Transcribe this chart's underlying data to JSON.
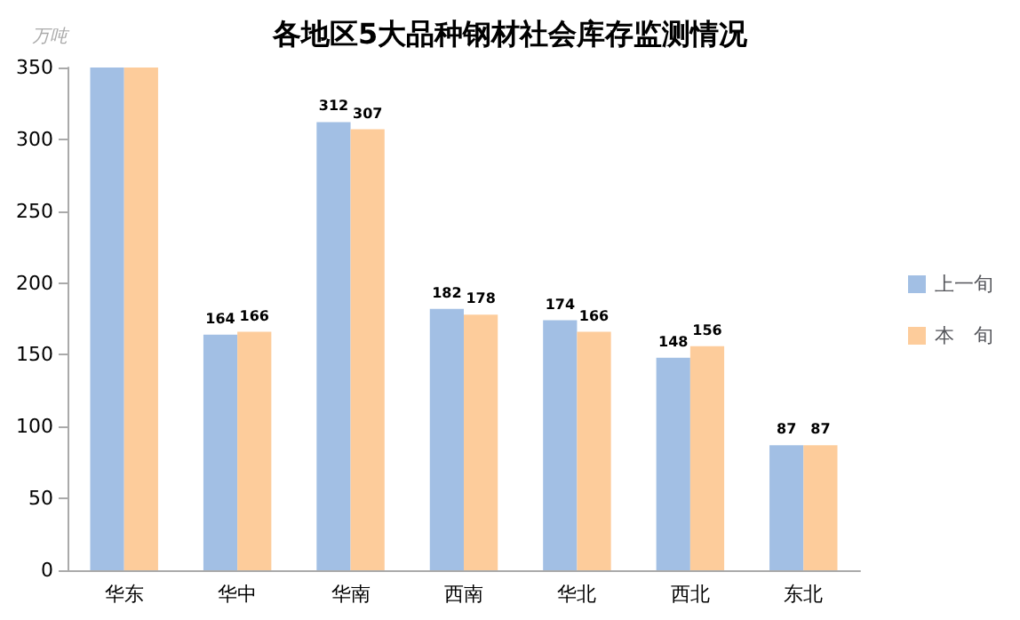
{
  "chart_data": {
    "type": "bar",
    "title": "各地区5大品种钢材社会库存监测情况",
    "ylabel": "万吨",
    "categories": [
      "华东",
      "华中",
      "华南",
      "西南",
      "华北",
      "西北",
      "东北"
    ],
    "series": [
      {
        "name": "上一旬",
        "color": "#a2bfe4",
        "values": [
          350,
          164,
          312,
          182,
          174,
          148,
          87
        ],
        "value_labels": [
          null,
          "164",
          "312",
          "182",
          "174",
          "148",
          "87"
        ]
      },
      {
        "name": "本　旬",
        "color": "#fdcc9b",
        "values": [
          350,
          166,
          307,
          178,
          166,
          156,
          87
        ],
        "value_labels": [
          null,
          "166",
          "307",
          "178",
          "166",
          "156",
          "87"
        ]
      }
    ],
    "ylim": [
      0,
      350
    ],
    "yticks": [
      0,
      50,
      100,
      150,
      200,
      250,
      300,
      350
    ],
    "grid": false,
    "legend": "right"
  }
}
